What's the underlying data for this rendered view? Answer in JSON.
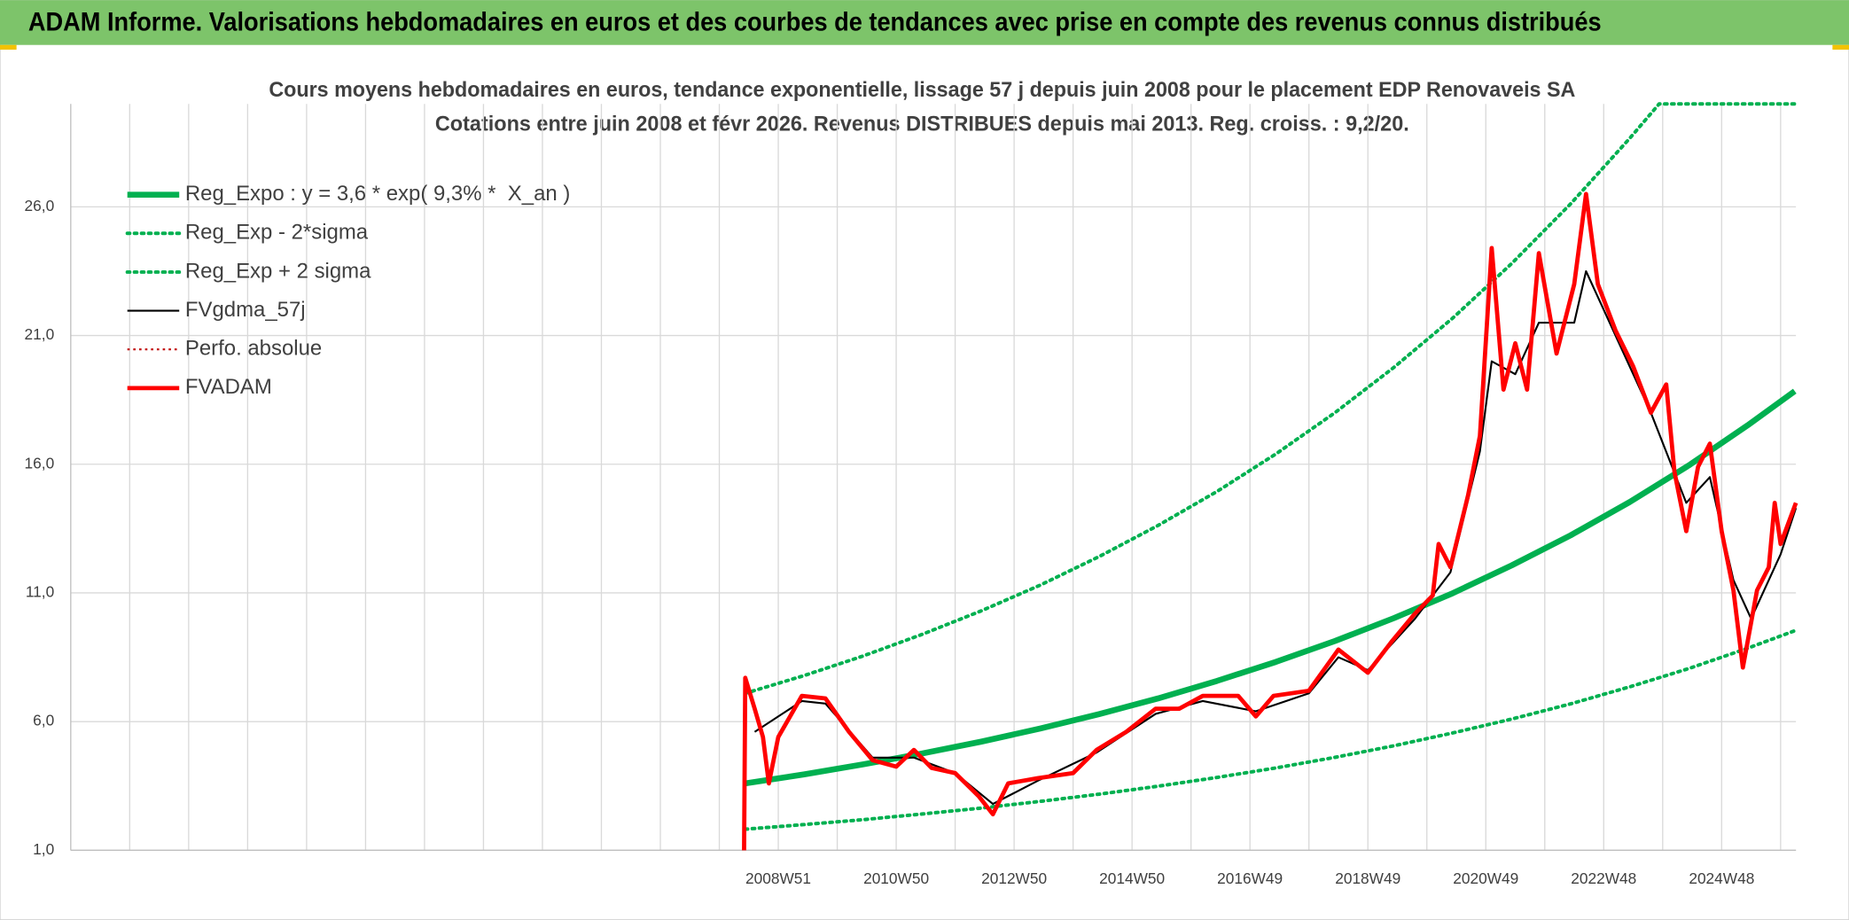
{
  "header": {
    "title": "ADAM Informe. Valorisations hebdomadaires en euros et des courbes de tendances avec prise en compte des revenus connus distribués"
  },
  "chart_data": {
    "type": "line",
    "title": "Cours moyens hebdomadaires en euros, tendance exponentielle, lissage 57 j depuis juin 2008 pour le placement EDP Renovaveis SA",
    "subtitle": "Cotations entre juin 2008 et févr 2026. Revenus DISTRIBUES depuis mai 2013. Reg. croiss. : 9,2/20.",
    "xlim": [
      1996.96,
      2026.22
    ],
    "xticks": [
      {
        "value": 1997.96,
        "label": null
      },
      {
        "value": 1998.96,
        "label": null
      },
      {
        "value": 1999.96,
        "label": null
      },
      {
        "value": 2000.96,
        "label": null
      },
      {
        "value": 2001.96,
        "label": null
      },
      {
        "value": 2002.96,
        "label": null
      },
      {
        "value": 2003.96,
        "label": null
      },
      {
        "value": 2004.96,
        "label": null
      },
      {
        "value": 2005.96,
        "label": null
      },
      {
        "value": 2006.96,
        "label": null
      },
      {
        "value": 2007.96,
        "label": null
      },
      {
        "value": 2008.96,
        "label": "2008W51"
      },
      {
        "value": 2009.96,
        "label": null
      },
      {
        "value": 2010.96,
        "label": "2010W50"
      },
      {
        "value": 2011.96,
        "label": null
      },
      {
        "value": 2012.96,
        "label": "2012W50"
      },
      {
        "value": 2013.96,
        "label": null
      },
      {
        "value": 2014.96,
        "label": "2014W50"
      },
      {
        "value": 2015.96,
        "label": null
      },
      {
        "value": 2016.96,
        "label": "2016W49"
      },
      {
        "value": 2017.96,
        "label": null
      },
      {
        "value": 2018.96,
        "label": "2018W49"
      },
      {
        "value": 2019.96,
        "label": null
      },
      {
        "value": 2020.96,
        "label": "2020W49"
      },
      {
        "value": 2021.96,
        "label": null
      },
      {
        "value": 2022.96,
        "label": "2022W48"
      },
      {
        "value": 2023.96,
        "label": null
      },
      {
        "value": 2024.96,
        "label": "2024W48"
      },
      {
        "value": 2025.96,
        "label": null
      }
    ],
    "ylim": [
      1,
      30
    ],
    "yticks": [
      {
        "value": 1,
        "label": "1,0"
      },
      {
        "value": 6,
        "label": "6,0"
      },
      {
        "value": 11,
        "label": "11,0"
      },
      {
        "value": 16,
        "label": "16,0"
      },
      {
        "value": 21,
        "label": "21,0"
      },
      {
        "value": 26,
        "label": "26,0"
      }
    ],
    "grid": true,
    "legend": "upper left",
    "series": [
      {
        "name": "Reg_Expo : y = 3,6 * exp( 9,3% *  X_an )",
        "color": "#00b050",
        "style": "thick",
        "x": [
          2008.4,
          2009.4,
          2010.4,
          2011.4,
          2012.4,
          2013.4,
          2014.4,
          2015.4,
          2016.4,
          2017.4,
          2018.4,
          2019.4,
          2020.4,
          2021.4,
          2022.4,
          2023.4,
          2024.4,
          2025.4,
          2026.2
        ],
        "values": [
          3.6,
          3.95,
          4.34,
          4.76,
          5.22,
          5.73,
          6.29,
          6.9,
          7.58,
          8.32,
          9.13,
          10.02,
          10.99,
          12.07,
          13.24,
          14.53,
          15.95,
          17.51,
          18.84
        ]
      },
      {
        "name": "Reg_Exp - 2*sigma",
        "color": "#00b050",
        "style": "dotted",
        "x": [
          2008.4,
          2009.4,
          2010.4,
          2011.4,
          2012.4,
          2013.4,
          2014.4,
          2015.4,
          2016.4,
          2017.4,
          2018.4,
          2019.4,
          2020.4,
          2021.4,
          2022.4,
          2023.4,
          2024.4,
          2025.4,
          2026.2
        ],
        "values": [
          1.82,
          2.0,
          2.19,
          2.41,
          2.64,
          2.9,
          3.18,
          3.49,
          3.83,
          4.2,
          4.61,
          5.06,
          5.56,
          6.1,
          6.69,
          7.35,
          8.06,
          8.85,
          9.53
        ]
      },
      {
        "name": "Reg_Exp + 2 sigma",
        "color": "#00b050",
        "style": "dotted",
        "x": [
          2008.4,
          2009.4,
          2010.4,
          2011.4,
          2012.4,
          2013.4,
          2014.4,
          2015.4,
          2016.4,
          2017.4,
          2018.4,
          2019.4,
          2020.4,
          2021.4,
          2022.4,
          2023.4,
          2023.9,
          2024.4,
          2026.2
        ],
        "values": [
          7.1,
          7.79,
          8.55,
          9.39,
          10.3,
          11.3,
          12.41,
          13.62,
          14.94,
          16.4,
          18.0,
          19.76,
          21.68,
          23.8,
          26.12,
          28.66,
          30,
          30,
          30
        ]
      },
      {
        "name": "FVgdma_57j",
        "color": "#000000",
        "style": "thin",
        "x": [
          2008.56,
          2009.36,
          2009.76,
          2010.56,
          2011.26,
          2011.96,
          2012.6,
          2013.36,
          2014.36,
          2015.36,
          2016.16,
          2017.06,
          2017.96,
          2018.46,
          2018.96,
          2019.76,
          2020.36,
          2020.86,
          2021.06,
          2021.46,
          2021.86,
          2022.46,
          2022.66,
          2023.16,
          2023.76,
          2024.36,
          2024.76,
          2025.16,
          2025.46,
          2025.96,
          2026.22
        ],
        "values": [
          5.6,
          6.8,
          6.7,
          4.6,
          4.6,
          4.0,
          2.8,
          3.7,
          4.8,
          6.3,
          6.8,
          6.4,
          7.1,
          8.5,
          8.0,
          10.0,
          11.8,
          16.5,
          20.0,
          19.5,
          21.5,
          21.5,
          23.5,
          21.0,
          18.0,
          14.5,
          15.5,
          11.5,
          10.0,
          12.5,
          14.3
        ]
      },
      {
        "name": "Perfo. absolue",
        "color": "#c00000",
        "style": "dotted-thin",
        "x": [],
        "values": []
      },
      {
        "name": "FVADAM",
        "color": "#ff0000",
        "style": "bold",
        "x": [
          2008.38,
          2008.4,
          2008.56,
          2008.7,
          2008.8,
          2008.96,
          2009.36,
          2009.76,
          2010.16,
          2010.56,
          2010.96,
          2011.26,
          2011.56,
          2011.96,
          2012.36,
          2012.6,
          2012.86,
          2013.36,
          2013.96,
          2014.36,
          2014.86,
          2015.36,
          2015.76,
          2016.16,
          2016.76,
          2017.06,
          2017.36,
          2017.96,
          2018.46,
          2018.96,
          2019.36,
          2019.76,
          2020.06,
          2020.16,
          2020.36,
          2020.66,
          2020.86,
          2021.06,
          2021.26,
          2021.46,
          2021.66,
          2021.86,
          2022.16,
          2022.46,
          2022.66,
          2022.86,
          2023.16,
          2023.46,
          2023.76,
          2024.02,
          2024.16,
          2024.36,
          2024.56,
          2024.76,
          2024.96,
          2025.16,
          2025.32,
          2025.56,
          2025.76,
          2025.86,
          2025.96,
          2026.22
        ],
        "values": [
          1.0,
          7.7,
          6.5,
          5.4,
          3.6,
          5.4,
          7.0,
          6.9,
          5.6,
          4.5,
          4.25,
          4.9,
          4.2,
          4.0,
          3.1,
          2.4,
          3.6,
          3.8,
          4.0,
          4.9,
          5.6,
          6.5,
          6.5,
          7.0,
          7.0,
          6.2,
          7.0,
          7.2,
          8.8,
          7.9,
          9.1,
          10.2,
          10.9,
          12.9,
          12.0,
          14.8,
          17.1,
          24.4,
          18.9,
          20.7,
          18.9,
          24.2,
          20.3,
          23.0,
          26.5,
          23.0,
          21.2,
          19.8,
          18.0,
          19.1,
          15.7,
          13.4,
          15.9,
          16.8,
          13.4,
          11.1,
          8.1,
          11.1,
          12.0,
          14.5,
          12.9,
          14.5
        ]
      }
    ]
  }
}
